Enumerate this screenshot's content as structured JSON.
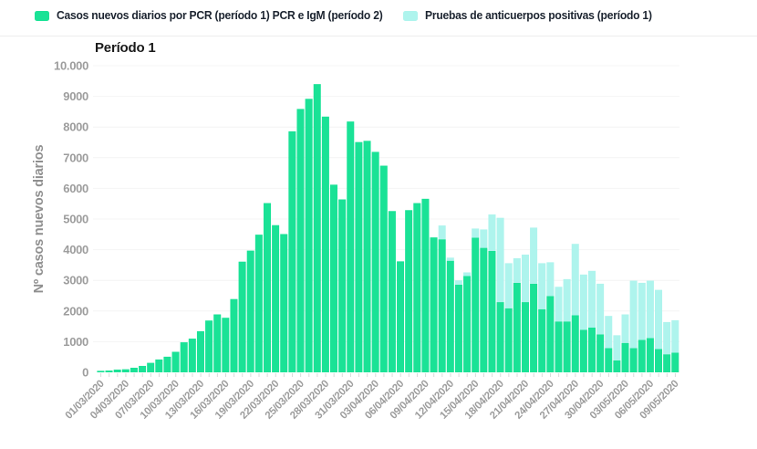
{
  "title": "Período 1",
  "legend": {
    "items": [
      {
        "label": "Casos nuevos diarios por PCR (período 1) PCR e IgM (período 2)",
        "color": "#1ae296"
      },
      {
        "label": "Pruebas de anticuerpos positivas (período 1)",
        "color": "#aef4ed"
      }
    ]
  },
  "colors": {
    "pcr_bar": "#1ae296",
    "antibody_bar": "#aef4ed",
    "axis_text": "#9d9d9d",
    "gridline": "#f4f4f4",
    "tick_mark": "#d9d9d9",
    "background": "#ffffff"
  },
  "chart_data": {
    "type": "bar",
    "stacked": true,
    "title": "Período 1",
    "xlabel": "",
    "ylabel": "Nº casos nuevos diarios",
    "ylim": [
      0,
      10000
    ],
    "grid": "faint-horizontal",
    "legend_position": "top",
    "y_tick_labels": [
      "0",
      "1000",
      "2000",
      "3000",
      "4000",
      "5000",
      "6000",
      "7000",
      "8000",
      "9000",
      "10.000"
    ],
    "x_tick_every": 3,
    "x_tick_labels": [
      "01/03/2020",
      "04/03/2020",
      "07/03/2020",
      "10/03/2020",
      "13/03/2020",
      "16/03/2020",
      "19/03/2020",
      "22/03/2020",
      "25/03/2020",
      "28/03/2020",
      "31/03/2020",
      "03/04/2020",
      "06/04/2020",
      "09/04/2020",
      "12/04/2020",
      "15/04/2020",
      "18/04/2020",
      "21/04/2020",
      "24/04/2020",
      "27/04/2020",
      "30/04/2020",
      "03/05/2020",
      "06/05/2020",
      "09/05/2020"
    ],
    "x": [
      "01/03/2020",
      "02/03/2020",
      "03/03/2020",
      "04/03/2020",
      "05/03/2020",
      "06/03/2020",
      "07/03/2020",
      "08/03/2020",
      "09/03/2020",
      "10/03/2020",
      "11/03/2020",
      "12/03/2020",
      "13/03/2020",
      "14/03/2020",
      "15/03/2020",
      "16/03/2020",
      "17/03/2020",
      "18/03/2020",
      "19/03/2020",
      "20/03/2020",
      "21/03/2020",
      "22/03/2020",
      "23/03/2020",
      "24/03/2020",
      "25/03/2020",
      "26/03/2020",
      "27/03/2020",
      "28/03/2020",
      "29/03/2020",
      "30/03/2020",
      "31/03/2020",
      "01/04/2020",
      "02/04/2020",
      "03/04/2020",
      "04/04/2020",
      "05/04/2020",
      "06/04/2020",
      "07/04/2020",
      "08/04/2020",
      "09/04/2020",
      "10/04/2020",
      "11/04/2020",
      "12/04/2020",
      "13/04/2020",
      "14/04/2020",
      "15/04/2020",
      "16/04/2020",
      "17/04/2020",
      "18/04/2020",
      "19/04/2020",
      "20/04/2020",
      "21/04/2020",
      "22/04/2020",
      "23/04/2020",
      "24/04/2020",
      "25/04/2020",
      "26/04/2020",
      "27/04/2020",
      "28/04/2020",
      "29/04/2020",
      "30/04/2020",
      "01/05/2020",
      "02/05/2020",
      "03/05/2020",
      "04/05/2020",
      "05/05/2020",
      "06/05/2020",
      "07/05/2020",
      "08/05/2020",
      "09/05/2020"
    ],
    "series": [
      {
        "name": "Casos nuevos diarios por PCR (período 1) PCR e IgM (período 2)",
        "color": "#1ae296",
        "values": [
          50,
          60,
          90,
          100,
          150,
          210,
          310,
          420,
          510,
          670,
          980,
          1100,
          1340,
          1690,
          1890,
          1780,
          2390,
          3610,
          3970,
          4490,
          5520,
          4800,
          4510,
          7860,
          8590,
          8920,
          9400,
          8340,
          6120,
          5640,
          8180,
          7510,
          7550,
          7190,
          6740,
          5260,
          3620,
          5290,
          5520,
          5660,
          4400,
          4340,
          3640,
          2860,
          3140,
          4390,
          4060,
          3960,
          2290,
          2090,
          2920,
          2290,
          2890,
          2060,
          2490,
          1660,
          1660,
          1860,
          1390,
          1460,
          1240,
          790,
          390,
          960,
          790,
          1060,
          1120,
          760,
          590,
          640
        ]
      },
      {
        "name": "Pruebas de anticuerpos positivas (período 1)",
        "color": "#aef4ed",
        "values": [
          0,
          0,
          0,
          0,
          0,
          0,
          0,
          0,
          0,
          0,
          0,
          0,
          0,
          0,
          0,
          0,
          0,
          0,
          0,
          0,
          0,
          0,
          0,
          0,
          0,
          0,
          0,
          0,
          0,
          0,
          0,
          0,
          0,
          0,
          0,
          0,
          0,
          0,
          0,
          0,
          0,
          450,
          100,
          140,
          120,
          300,
          600,
          1190,
          2750,
          1470,
          800,
          1550,
          1830,
          1500,
          1100,
          1130,
          1380,
          2330,
          1800,
          1850,
          1650,
          1050,
          820,
          930,
          2200,
          1860,
          1870,
          1930,
          1050,
          1060
        ]
      }
    ]
  }
}
